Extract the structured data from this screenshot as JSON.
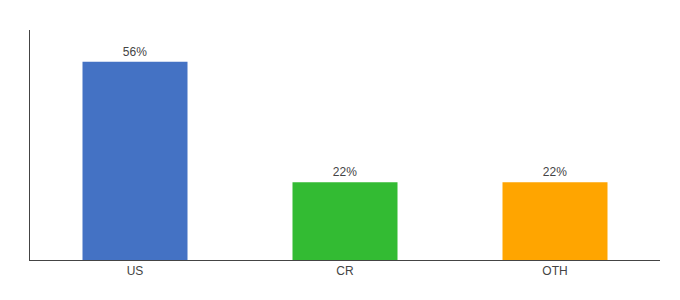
{
  "chart_data": {
    "type": "bar",
    "categories": [
      "US",
      "CR",
      "OTH"
    ],
    "values": [
      56,
      22,
      22
    ],
    "value_labels": [
      "56%",
      "22%",
      "22%"
    ],
    "data_labels": true,
    "colors": [
      "#4472C4",
      "#33BB33",
      "#FFA500"
    ],
    "ylim": [
      0,
      65
    ],
    "grid": false,
    "tick_labels": "x"
  }
}
